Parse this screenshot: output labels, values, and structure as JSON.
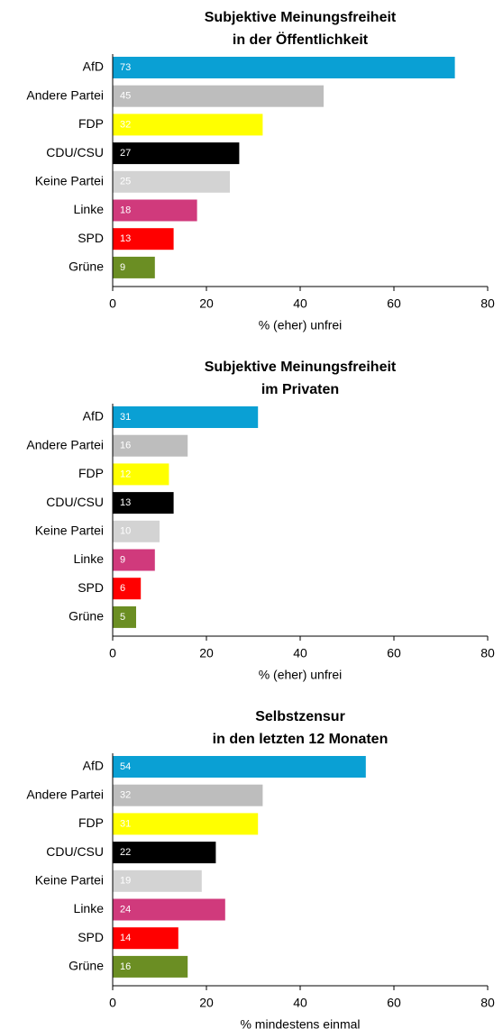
{
  "chart_data": [
    {
      "type": "bar",
      "orientation": "horizontal",
      "title": [
        "Subjektive Meinungsfreiheit",
        "in der Öffentlichkeit"
      ],
      "xlabel": "% (eher) unfrei",
      "categories": [
        "AfD",
        "Andere Partei",
        "FDP",
        "CDU/CSU",
        "Keine Partei",
        "Linke",
        "SPD",
        "Grüne"
      ],
      "values": [
        73,
        45,
        32,
        27,
        25,
        18,
        13,
        9
      ],
      "colors": [
        "#0aa0d4",
        "#bdbdbd",
        "#ffff00",
        "#000000",
        "#d3d3d3",
        "#d03a7c",
        "#ff0000",
        "#6b8e23"
      ],
      "xlim": [
        0,
        80
      ],
      "xticks": [
        0,
        20,
        40,
        60,
        80
      ]
    },
    {
      "type": "bar",
      "orientation": "horizontal",
      "title": [
        "Subjektive Meinungsfreiheit",
        "im Privaten"
      ],
      "xlabel": "% (eher) unfrei",
      "categories": [
        "AfD",
        "Andere Partei",
        "FDP",
        "CDU/CSU",
        "Keine Partei",
        "Linke",
        "SPD",
        "Grüne"
      ],
      "values": [
        31,
        16,
        12,
        13,
        10,
        9,
        6,
        5
      ],
      "colors": [
        "#0aa0d4",
        "#bdbdbd",
        "#ffff00",
        "#000000",
        "#d3d3d3",
        "#d03a7c",
        "#ff0000",
        "#6b8e23"
      ],
      "xlim": [
        0,
        80
      ],
      "xticks": [
        0,
        20,
        40,
        60,
        80
      ]
    },
    {
      "type": "bar",
      "orientation": "horizontal",
      "title": [
        "Selbstzensur",
        "in den letzten 12 Monaten"
      ],
      "xlabel": "% mindestens einmal",
      "categories": [
        "AfD",
        "Andere Partei",
        "FDP",
        "CDU/CSU",
        "Keine Partei",
        "Linke",
        "SPD",
        "Grüne"
      ],
      "values": [
        54,
        32,
        31,
        22,
        19,
        24,
        14,
        16
      ],
      "colors": [
        "#0aa0d4",
        "#bdbdbd",
        "#ffff00",
        "#000000",
        "#d3d3d3",
        "#d03a7c",
        "#ff0000",
        "#6b8e23"
      ],
      "xlim": [
        0,
        80
      ],
      "xticks": [
        0,
        20,
        40,
        60,
        80
      ]
    }
  ]
}
